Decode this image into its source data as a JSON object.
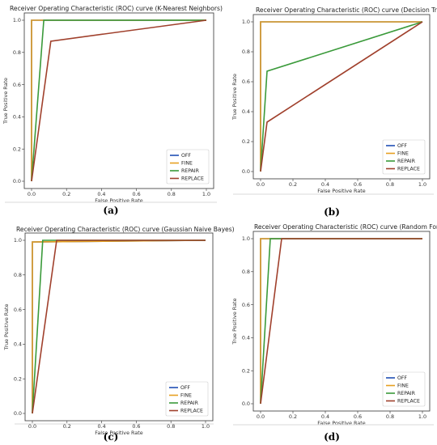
{
  "chart_data": [
    {
      "type": "line",
      "panel": "(a)",
      "title": "Receiver Operating Characteristic (ROC) curve (K-Nearest Neighbors)",
      "xlabel": "False Positive Rate",
      "ylabel": "True Positive Rate",
      "xlim": [
        0,
        1
      ],
      "ylim": [
        0,
        1
      ],
      "xticks": [
        "0.0",
        "0.2",
        "0.4",
        "0.6",
        "0.8",
        "1.0"
      ],
      "yticks": [
        "0.0",
        "0.2",
        "0.4",
        "0.6",
        "0.8",
        "1.0"
      ],
      "legend_position": "lower-right",
      "series": [
        {
          "name": "OFF",
          "color": "#1f4fb4",
          "x": [
            0,
            0,
            1
          ],
          "y": [
            0,
            1,
            1
          ]
        },
        {
          "name": "FINE",
          "color": "#e6a020",
          "x": [
            0,
            0,
            1
          ],
          "y": [
            0,
            1,
            1
          ]
        },
        {
          "name": "REPAIR",
          "color": "#3a9a3a",
          "x": [
            0,
            0.07,
            1
          ],
          "y": [
            0,
            1,
            1
          ]
        },
        {
          "name": "REPLACE",
          "color": "#a0402c",
          "x": [
            0,
            0.11,
            1
          ],
          "y": [
            0,
            0.87,
            1
          ]
        }
      ]
    },
    {
      "type": "line",
      "panel": "(b)",
      "title": "Receiver Operating Characteristic (ROC) curve (Decision Tree)",
      "xlabel": "False Positive Rate",
      "ylabel": "True Positive Rate",
      "xlim": [
        0,
        1
      ],
      "ylim": [
        0,
        1
      ],
      "xticks": [
        "0.0",
        "0.2",
        "0.4",
        "0.6",
        "0.8",
        "1.0"
      ],
      "yticks": [
        "0.0",
        "0.2",
        "0.4",
        "0.6",
        "0.8",
        "1.0"
      ],
      "legend_position": "lower-right",
      "series": [
        {
          "name": "OFF",
          "color": "#1f4fb4",
          "x": [
            0,
            0,
            1
          ],
          "y": [
            0,
            1,
            1
          ]
        },
        {
          "name": "FINE",
          "color": "#e6a020",
          "x": [
            0,
            0,
            1
          ],
          "y": [
            0,
            1,
            1
          ]
        },
        {
          "name": "REPAIR",
          "color": "#3a9a3a",
          "x": [
            0,
            0.04,
            1
          ],
          "y": [
            0,
            0.67,
            1
          ]
        },
        {
          "name": "REPLACE",
          "color": "#a0402c",
          "x": [
            0,
            0.04,
            1
          ],
          "y": [
            0,
            0.33,
            1
          ]
        }
      ]
    },
    {
      "type": "line",
      "panel": "(c)",
      "title": "Receiver Operating Characteristic (ROC) curve (Gaussian Naive Bayes)",
      "xlabel": "False Positive Rate",
      "ylabel": "True Positive Rate",
      "xlim": [
        0,
        1
      ],
      "ylim": [
        0,
        1
      ],
      "xticks": [
        "0.0",
        "0.2",
        "0.4",
        "0.6",
        "0.8",
        "1.0"
      ],
      "yticks": [
        "0.0",
        "0.2",
        "0.4",
        "0.6",
        "0.8",
        "1.0"
      ],
      "legend_position": "lower-right",
      "series": [
        {
          "name": "OFF",
          "color": "#1f4fb4",
          "x": [
            0,
            0,
            1
          ],
          "y": [
            0,
            0.99,
            1
          ]
        },
        {
          "name": "FINE",
          "color": "#e6a020",
          "x": [
            0,
            0,
            1
          ],
          "y": [
            0,
            0.99,
            1
          ]
        },
        {
          "name": "REPAIR",
          "color": "#3a9a3a",
          "x": [
            0,
            0.06,
            1
          ],
          "y": [
            0,
            1,
            1
          ]
        },
        {
          "name": "REPLACE",
          "color": "#a0402c",
          "x": [
            0,
            0.14,
            1
          ],
          "y": [
            0,
            1,
            1
          ]
        }
      ]
    },
    {
      "type": "line",
      "panel": "(d)",
      "title": "Receiver Operating Characteristic (ROC) curve (Random Forest)",
      "xlabel": "False Positive Rate",
      "ylabel": "True Positive Rate",
      "xlim": [
        0,
        1
      ],
      "ylim": [
        0,
        1
      ],
      "xticks": [
        "0.0",
        "0.2",
        "0.4",
        "0.6",
        "0.8",
        "1.0"
      ],
      "yticks": [
        "0.0",
        "0.2",
        "0.4",
        "0.6",
        "0.8",
        "1.0"
      ],
      "legend_position": "lower-right",
      "series": [
        {
          "name": "OFF",
          "color": "#1f4fb4",
          "x": [
            0,
            0,
            1
          ],
          "y": [
            0,
            1,
            1
          ]
        },
        {
          "name": "FINE",
          "color": "#e6a020",
          "x": [
            0,
            0,
            1
          ],
          "y": [
            0,
            1,
            1
          ]
        },
        {
          "name": "REPAIR",
          "color": "#3a9a3a",
          "x": [
            0,
            0.06,
            1
          ],
          "y": [
            0,
            1,
            1
          ]
        },
        {
          "name": "REPLACE",
          "color": "#a0402c",
          "x": [
            0,
            0.13,
            1
          ],
          "y": [
            0,
            1,
            1
          ]
        }
      ]
    }
  ]
}
